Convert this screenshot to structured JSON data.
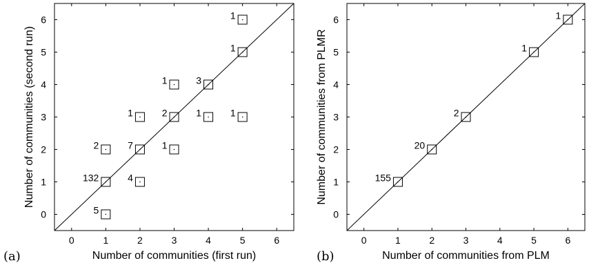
{
  "chart_data": [
    {
      "type": "scatter",
      "panel_label": "(a)",
      "xlabel": "Number of communities (first run)",
      "ylabel": "Number of communities (second run)",
      "xlim": [
        -0.5,
        6.5
      ],
      "ylim": [
        -0.5,
        6.5
      ],
      "xticks": [
        "0",
        "1",
        "2",
        "3",
        "4",
        "5",
        "6"
      ],
      "yticks": [
        "0",
        "1",
        "2",
        "3",
        "4",
        "5",
        "6"
      ],
      "diagonal": true,
      "grid": false,
      "marker": "square",
      "points": [
        {
          "x": 1,
          "y": 0,
          "count": "5"
        },
        {
          "x": 1,
          "y": 1,
          "count": "132"
        },
        {
          "x": 1,
          "y": 2,
          "count": "2"
        },
        {
          "x": 2,
          "y": 1,
          "count": "4"
        },
        {
          "x": 2,
          "y": 2,
          "count": "7"
        },
        {
          "x": 2,
          "y": 3,
          "count": "1"
        },
        {
          "x": 3,
          "y": 2,
          "count": "1"
        },
        {
          "x": 3,
          "y": 3,
          "count": "2"
        },
        {
          "x": 3,
          "y": 4,
          "count": "1"
        },
        {
          "x": 4,
          "y": 3,
          "count": "1"
        },
        {
          "x": 4,
          "y": 4,
          "count": "3"
        },
        {
          "x": 5,
          "y": 3,
          "count": "1"
        },
        {
          "x": 5,
          "y": 5,
          "count": "1"
        },
        {
          "x": 5,
          "y": 6,
          "count": "1"
        }
      ]
    },
    {
      "type": "scatter",
      "panel_label": "(b)",
      "xlabel": "Number of communities from PLM",
      "ylabel": "Number of communities from PLMR",
      "xlim": [
        -0.5,
        6.5
      ],
      "ylim": [
        -0.5,
        6.5
      ],
      "xticks": [
        "0",
        "1",
        "2",
        "3",
        "4",
        "5",
        "6"
      ],
      "yticks": [
        "0",
        "1",
        "2",
        "3",
        "4",
        "5",
        "6"
      ],
      "diagonal": true,
      "grid": false,
      "marker": "square",
      "points": [
        {
          "x": 1,
          "y": 1,
          "count": "155"
        },
        {
          "x": 2,
          "y": 2,
          "count": "20"
        },
        {
          "x": 3,
          "y": 3,
          "count": "2"
        },
        {
          "x": 5,
          "y": 5,
          "count": "1"
        },
        {
          "x": 6,
          "y": 6,
          "count": "1"
        }
      ]
    }
  ]
}
